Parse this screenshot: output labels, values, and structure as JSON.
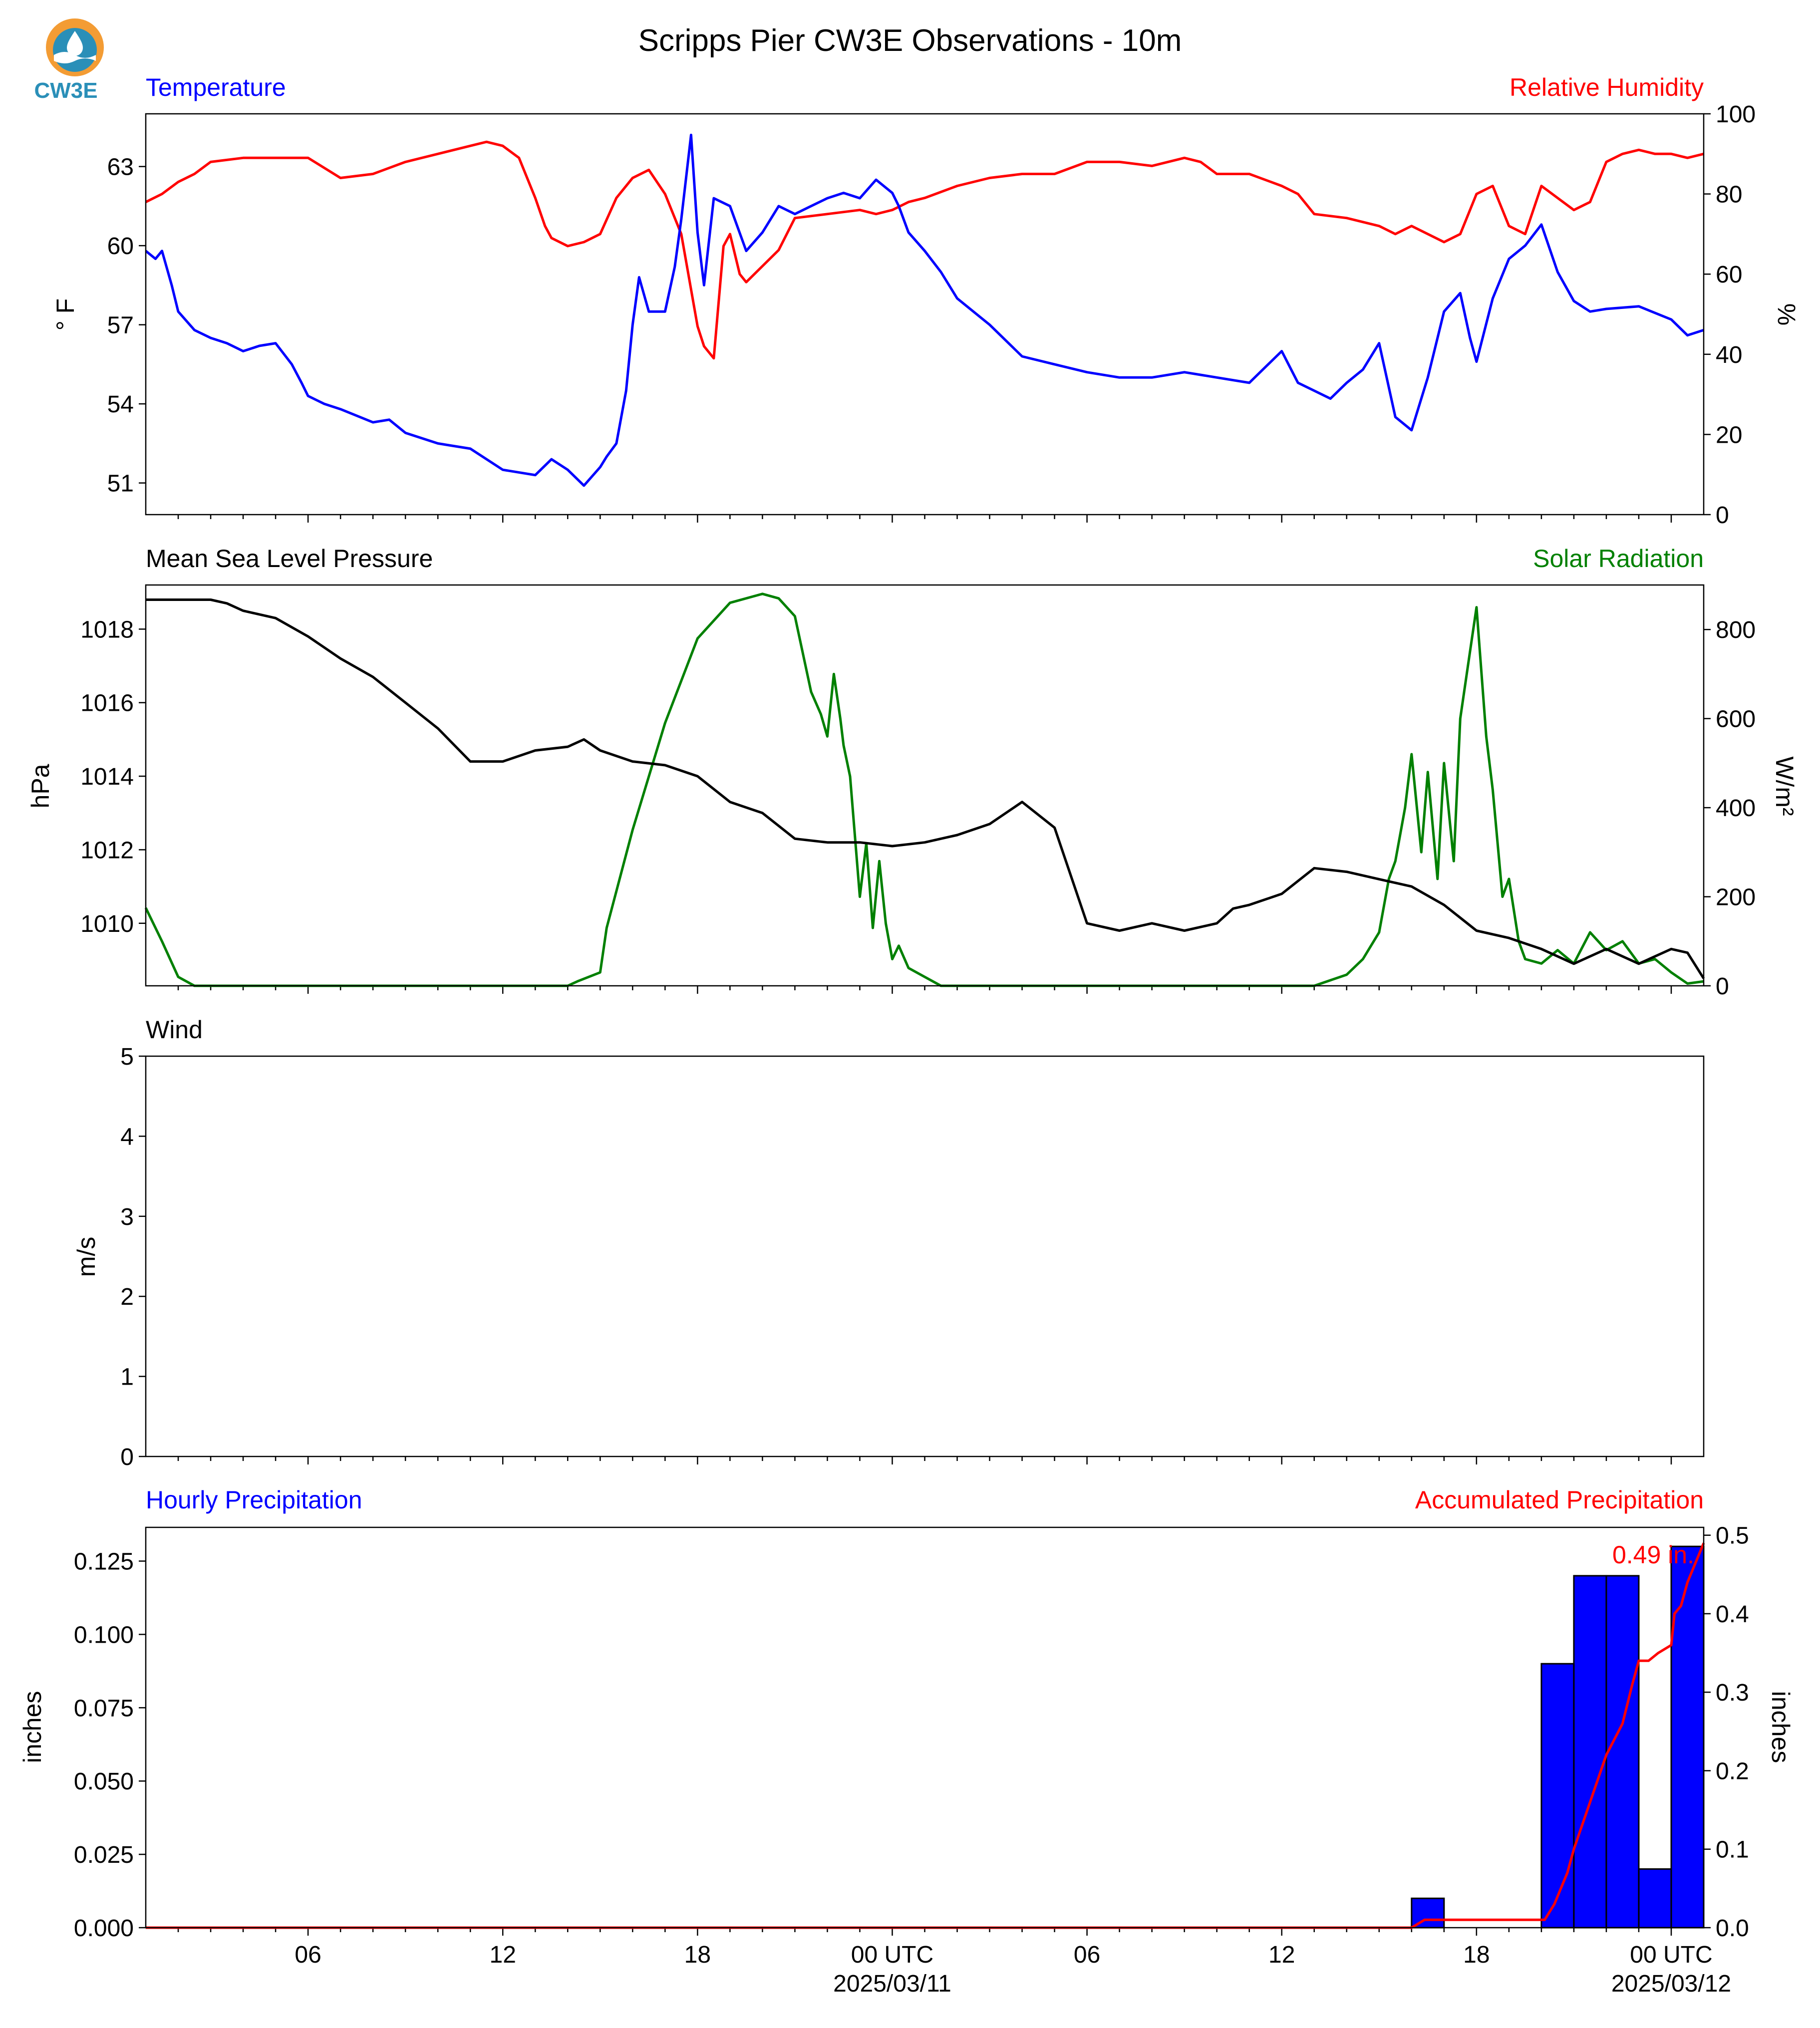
{
  "figure": {
    "title": "Scripps Pier CW3E Observations - 10m",
    "logo_text": "CW3E"
  },
  "colors": {
    "temperature": "#0000ff",
    "humidity": "#ff0000",
    "pressure": "#000000",
    "solar": "#008000",
    "hourly_bar": "#0000ff",
    "accumulated": "#ff0000",
    "logo_orange": "#f39c34",
    "logo_teal": "#2a8fb8"
  },
  "chart_data": [
    {
      "type": "line",
      "panel": "temperature-humidity",
      "x_unit": "hours since 2025-03-10 01 UTC",
      "xlim": [
        0,
        48
      ],
      "left_title": "Temperature",
      "right_title": "Relative Humidity",
      "ylabel_left": "° F",
      "ylabel_right": "%",
      "ylim_left": [
        49.8,
        65.0
      ],
      "ylim_right": [
        0,
        100
      ],
      "yticks_left": [
        51,
        54,
        57,
        60,
        63
      ],
      "yticks_right": [
        0,
        20,
        40,
        60,
        80,
        100
      ],
      "series": [
        {
          "axis": "left",
          "x": [
            0,
            0.3,
            0.5,
            0.8,
            1,
            1.5,
            2,
            2.5,
            3,
            3.5,
            4,
            4.5,
            4.8,
            5,
            5.5,
            6,
            7,
            7.5,
            8,
            9,
            10,
            11,
            12,
            12.5,
            13,
            13.5,
            14,
            14.2,
            14.5,
            14.8,
            15,
            15.2,
            15.5,
            16,
            16.3,
            16.5,
            16.8,
            17,
            17.2,
            17.5,
            18,
            18.5,
            19,
            19.5,
            20,
            20.5,
            21,
            21.5,
            22,
            22.5,
            23,
            23.2,
            23.5,
            24,
            24.5,
            25,
            26,
            27,
            28,
            29,
            30,
            31,
            32,
            33,
            34,
            35,
            35.5,
            36,
            36.5,
            37,
            37.5,
            38,
            38.5,
            39,
            39.5,
            40,
            40.5,
            40.8,
            41,
            41.5,
            42,
            42.5,
            43,
            43.5,
            44,
            44.5,
            45,
            46,
            47,
            47.5,
            48
          ],
          "y": [
            59.8,
            59.5,
            59.8,
            58.5,
            57.5,
            56.8,
            56.5,
            56.3,
            56.0,
            56.2,
            56.3,
            55.5,
            54.8,
            54.3,
            54.0,
            53.8,
            53.3,
            53.4,
            52.9,
            52.5,
            52.3,
            51.5,
            51.3,
            51.9,
            51.5,
            50.9,
            51.6,
            52.0,
            52.5,
            54.5,
            57.0,
            58.8,
            57.5,
            57.5,
            59.2,
            61.0,
            64.2,
            60.5,
            58.5,
            61.8,
            61.5,
            59.8,
            60.5,
            61.5,
            61.2,
            61.5,
            61.8,
            62.0,
            61.8,
            62.5,
            62.0,
            61.5,
            60.5,
            59.8,
            59.0,
            58.0,
            57.0,
            55.8,
            55.5,
            55.2,
            55.0,
            55.0,
            55.2,
            55.0,
            54.8,
            56.0,
            54.8,
            54.5,
            54.2,
            54.8,
            55.3,
            56.3,
            53.5,
            53.0,
            55.0,
            57.5,
            58.2,
            56.5,
            55.6,
            58.0,
            59.5,
            60.0,
            60.8,
            59.0,
            57.9,
            57.5,
            57.6,
            57.7,
            57.2,
            56.6,
            56.8
          ]
        },
        {
          "axis": "right",
          "x": [
            0,
            0.5,
            1,
            1.5,
            2,
            3,
            4,
            5,
            6,
            7,
            8,
            9,
            10,
            10.5,
            11,
            11.5,
            12,
            12.3,
            12.5,
            13,
            13.5,
            14,
            14.5,
            15,
            15.5,
            16,
            16.5,
            17,
            17.2,
            17.5,
            17.8,
            18,
            18.3,
            18.5,
            19,
            19.5,
            20,
            21,
            22,
            22.5,
            23,
            23.5,
            24,
            25,
            26,
            27,
            28,
            29,
            30,
            31,
            32,
            32.5,
            33,
            34,
            35,
            35.5,
            36,
            37,
            38,
            38.5,
            39,
            39.5,
            40,
            40.5,
            41,
            41.5,
            42,
            42.5,
            43,
            43.5,
            44,
            44.5,
            45,
            45.5,
            46,
            46.5,
            47,
            47.5,
            48
          ],
          "y": [
            78,
            80,
            83,
            85,
            88,
            89,
            89,
            89,
            84,
            85,
            88,
            90,
            92,
            93,
            92,
            89,
            79,
            72,
            69,
            67,
            68,
            70,
            79,
            84,
            86,
            80,
            70,
            47,
            42,
            39,
            67,
            70,
            60,
            58,
            62,
            66,
            74,
            75,
            76,
            75,
            76,
            78,
            79,
            82,
            84,
            85,
            85,
            88,
            88,
            87,
            89,
            88,
            85,
            85,
            82,
            80,
            75,
            74,
            72,
            70,
            72,
            70,
            68,
            70,
            80,
            82,
            72,
            70,
            82,
            79,
            76,
            78,
            88,
            90,
            91,
            90,
            90,
            89,
            90
          ]
        }
      ]
    },
    {
      "type": "line",
      "panel": "pressure-solar",
      "x_unit": "hours since 2025-03-10 01 UTC",
      "xlim": [
        0,
        48
      ],
      "left_title": "Mean Sea Level Pressure",
      "right_title": "Solar Radiation",
      "ylabel_left": "hPa",
      "ylabel_right": "W/m²",
      "ylim_left": [
        1008.3,
        1019.2
      ],
      "ylim_right": [
        0,
        900
      ],
      "yticks_left": [
        1010,
        1012,
        1014,
        1016,
        1018
      ],
      "yticks_right": [
        0,
        200,
        400,
        600,
        800
      ],
      "series": [
        {
          "axis": "left",
          "x": [
            0,
            1,
            2,
            2.5,
            3,
            4,
            5,
            6,
            7,
            8,
            9,
            10,
            11,
            12,
            13,
            13.5,
            14,
            15,
            16,
            17,
            18,
            19,
            20,
            21,
            22,
            23,
            24,
            25,
            26,
            27,
            28,
            29,
            30,
            31,
            32,
            33,
            33.5,
            34,
            35,
            36,
            37,
            38,
            39,
            40,
            41,
            42,
            43,
            44,
            45,
            46,
            47,
            47.5,
            48
          ],
          "y": [
            1018.8,
            1018.8,
            1018.8,
            1018.7,
            1018.5,
            1018.3,
            1017.8,
            1017.2,
            1016.7,
            1016.0,
            1015.3,
            1014.4,
            1014.4,
            1014.7,
            1014.8,
            1015.0,
            1014.7,
            1014.4,
            1014.3,
            1014.0,
            1013.3,
            1013.0,
            1012.3,
            1012.2,
            1012.2,
            1012.1,
            1012.2,
            1012.4,
            1012.7,
            1013.3,
            1012.6,
            1010.0,
            1009.8,
            1010.0,
            1009.8,
            1010.0,
            1010.4,
            1010.5,
            1010.8,
            1011.5,
            1011.4,
            1011.2,
            1011.0,
            1010.5,
            1009.8,
            1009.6,
            1009.3,
            1008.9,
            1009.3,
            1008.9,
            1009.3,
            1009.2,
            1008.5
          ]
        },
        {
          "axis": "right",
          "x": [
            0,
            0.5,
            1,
            1.5,
            2,
            13,
            13.3,
            14,
            14.2,
            15,
            16,
            17,
            18,
            19,
            19.5,
            20,
            20.5,
            20.8,
            21,
            21.2,
            21.4,
            21.5,
            21.7,
            22,
            22.2,
            22.4,
            22.6,
            22.8,
            23,
            23.2,
            23.5,
            24,
            24.5,
            25,
            26,
            36,
            37,
            37.5,
            38,
            38.3,
            38.5,
            38.8,
            39,
            39.3,
            39.5,
            39.8,
            40,
            40.3,
            40.5,
            40.8,
            41,
            41.3,
            41.5,
            41.8,
            42,
            42.3,
            42.5,
            43,
            43.5,
            44,
            44.5,
            45,
            45.5,
            46,
            46.5,
            47,
            47.5,
            48
          ],
          "y": [
            175,
            100,
            20,
            0,
            0,
            0,
            10,
            30,
            130,
            350,
            590,
            780,
            860,
            880,
            870,
            830,
            660,
            610,
            560,
            700,
            600,
            540,
            470,
            200,
            320,
            130,
            280,
            140,
            60,
            90,
            40,
            20,
            0,
            0,
            0,
            0,
            25,
            60,
            120,
            240,
            280,
            400,
            520,
            300,
            480,
            240,
            500,
            280,
            600,
            750,
            850,
            560,
            440,
            200,
            240,
            100,
            60,
            50,
            80,
            50,
            120,
            80,
            100,
            50,
            60,
            30,
            5,
            10
          ]
        }
      ]
    },
    {
      "type": "line",
      "panel": "wind",
      "x_unit": "hours since 2025-03-10 01 UTC",
      "xlim": [
        0,
        48
      ],
      "left_title": "Wind",
      "ylabel": "m/s",
      "ylim": [
        0,
        5
      ],
      "yticks": [
        0,
        1,
        2,
        3,
        4,
        5
      ],
      "series": []
    },
    {
      "type": "bar",
      "panel": "precipitation",
      "x_unit": "hours since 2025-03-10 01 UTC",
      "xlim": [
        0,
        48
      ],
      "left_title": "Hourly Precipitation",
      "right_title": "Accumulated Precipitation",
      "ylabel_left": "inches",
      "ylabel_right": "inches",
      "ylim_left": [
        0,
        0.1365
      ],
      "ylim_right": [
        0,
        0.51
      ],
      "yticks_left": [
        "0.000",
        "0.025",
        "0.050",
        "0.075",
        "0.100",
        "0.125"
      ],
      "yticks_right": [
        "0.0",
        "0.1",
        "0.2",
        "0.3",
        "0.4",
        "0.5"
      ],
      "hourly": {
        "start": [
          39,
          43,
          44,
          45,
          46,
          47
        ],
        "values": [
          0.01,
          0.09,
          0.12,
          0.12,
          0.02,
          0.13
        ]
      },
      "accumulated": {
        "x": [
          0,
          39,
          39.4,
          43.1,
          43.4,
          43.8,
          44,
          44.5,
          45,
          45.5,
          45.8,
          46,
          46.3,
          46.6,
          47,
          47.1,
          47.3,
          47.5,
          47.7,
          48
        ],
        "y": [
          0,
          0,
          0.01,
          0.01,
          0.03,
          0.07,
          0.1,
          0.16,
          0.22,
          0.26,
          0.31,
          0.34,
          0.34,
          0.35,
          0.36,
          0.4,
          0.41,
          0.44,
          0.46,
          0.49
        ]
      },
      "annotation": "0.49 in."
    }
  ],
  "x_axis": {
    "minor_hours": [
      1,
      2,
      3,
      4,
      5,
      6,
      7,
      8,
      9,
      10,
      11,
      12,
      13,
      14,
      15,
      16,
      17,
      18,
      19,
      20,
      21,
      22,
      23,
      24,
      25,
      26,
      27,
      28,
      29,
      30,
      31,
      32,
      33,
      34,
      35,
      36,
      37,
      38,
      39,
      40,
      41,
      42,
      43,
      44,
      45,
      46,
      47
    ],
    "major_hours": [
      5,
      11,
      17,
      23,
      29,
      35,
      41,
      47
    ],
    "major_labels": [
      "06",
      "12",
      "18",
      "00 UTC",
      "06",
      "12",
      "18",
      "00 UTC"
    ],
    "date_labels": [
      {
        "hour": 23,
        "text": "2025/03/11"
      },
      {
        "hour": 47,
        "text": "2025/03/12"
      }
    ]
  }
}
